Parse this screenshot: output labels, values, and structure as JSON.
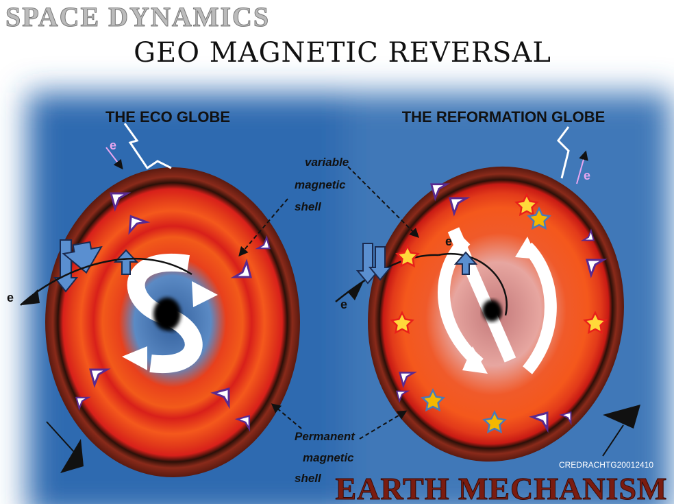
{
  "header": {
    "title": "SPACE DYNAMICS",
    "subtitle": "GEO MAGNETIC REVERSAL"
  },
  "globes": [
    {
      "title": "THE ECO GLOBE"
    },
    {
      "title": "THE REFORMATION GLOBE"
    }
  ],
  "annotations": {
    "variable_shell": [
      "variable",
      "magnetic",
      "shell"
    ],
    "permanent_shell": [
      "Permanent",
      "magnetic",
      "shell"
    ]
  },
  "electron_labels": [
    "e",
    "e",
    "e",
    "e",
    "e"
  ],
  "footer": {
    "title": "EARTH MECHANISM",
    "credit": "CREDRACHTG20012410"
  }
}
